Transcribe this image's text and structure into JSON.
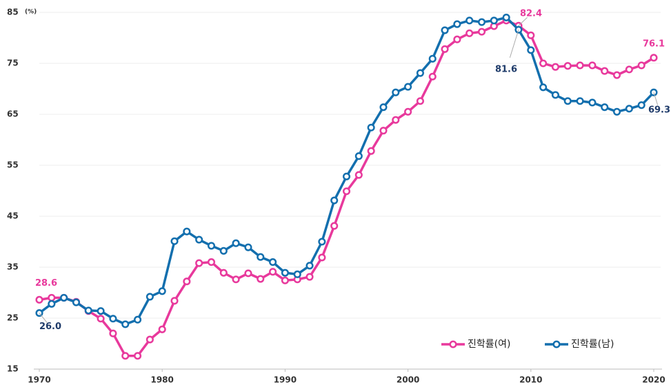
{
  "chart_data": {
    "type": "line",
    "y_unit": "(%)",
    "x": [
      1970,
      1971,
      1972,
      1973,
      1974,
      1975,
      1976,
      1977,
      1978,
      1979,
      1980,
      1981,
      1982,
      1983,
      1984,
      1985,
      1986,
      1987,
      1988,
      1989,
      1990,
      1991,
      1992,
      1993,
      1994,
      1995,
      1996,
      1997,
      1998,
      1999,
      2000,
      2001,
      2002,
      2003,
      2004,
      2005,
      2006,
      2007,
      2008,
      2009,
      2010,
      2011,
      2012,
      2013,
      2014,
      2015,
      2016,
      2017,
      2018,
      2019,
      2020
    ],
    "series": [
      {
        "name": "진학률(여)",
        "color": "#e8399c",
        "values": [
          28.6,
          29.0,
          29.0,
          28.2,
          26.4,
          24.9,
          22.0,
          17.6,
          17.6,
          20.8,
          22.8,
          28.4,
          32.2,
          35.8,
          36.0,
          33.9,
          32.6,
          33.8,
          32.7,
          34.1,
          32.4,
          32.6,
          33.1,
          36.9,
          43.1,
          49.9,
          53.1,
          57.8,
          61.8,
          63.9,
          65.5,
          67.6,
          72.4,
          77.8,
          79.7,
          80.9,
          81.2,
          82.3,
          83.4,
          82.4,
          80.5,
          75.0,
          74.3,
          74.5,
          74.6,
          74.6,
          73.5,
          72.7,
          73.8,
          74.6,
          76.1
        ],
        "value_labels": [
          "28.6",
          null,
          null,
          null,
          null,
          null,
          null,
          null,
          null,
          null,
          null,
          null,
          null,
          null,
          null,
          null,
          null,
          null,
          null,
          null,
          null,
          null,
          null,
          null,
          null,
          null,
          null,
          null,
          null,
          null,
          null,
          null,
          null,
          null,
          null,
          null,
          null,
          null,
          null,
          "82.4",
          null,
          null,
          null,
          null,
          null,
          null,
          null,
          null,
          null,
          null,
          "76.1"
        ]
      },
      {
        "name": "진학률(남)",
        "color": "#136fae",
        "values": [
          26.0,
          27.8,
          29.0,
          28.1,
          26.5,
          26.4,
          24.9,
          23.8,
          24.7,
          29.2,
          30.3,
          40.1,
          42.0,
          40.4,
          39.2,
          38.2,
          39.7,
          38.9,
          37.0,
          36.0,
          33.9,
          33.6,
          35.3,
          40.0,
          48.1,
          52.8,
          56.8,
          62.4,
          66.4,
          69.3,
          70.4,
          73.1,
          75.9,
          81.5,
          82.7,
          83.4,
          83.1,
          83.4,
          84.0,
          81.6,
          77.6,
          70.3,
          68.8,
          67.6,
          67.6,
          67.3,
          66.4,
          65.5,
          66.1,
          66.8,
          69.3
        ],
        "value_labels": [
          "26.0",
          null,
          null,
          null,
          null,
          null,
          null,
          null,
          null,
          null,
          null,
          null,
          null,
          null,
          null,
          null,
          null,
          null,
          null,
          null,
          null,
          null,
          null,
          null,
          null,
          null,
          null,
          null,
          null,
          null,
          null,
          null,
          null,
          null,
          null,
          null,
          null,
          null,
          null,
          "81.6",
          null,
          null,
          null,
          null,
          null,
          null,
          null,
          null,
          null,
          null,
          "69.3"
        ]
      }
    ],
    "xlim": [
      1970,
      2020
    ],
    "xticks": [
      1970,
      1980,
      1990,
      2000,
      2010,
      2020
    ],
    "ylim": [
      15,
      85
    ],
    "yticks": [
      15,
      25,
      35,
      45,
      55,
      65,
      75,
      85
    ],
    "grid": true,
    "legend": "lower right"
  }
}
